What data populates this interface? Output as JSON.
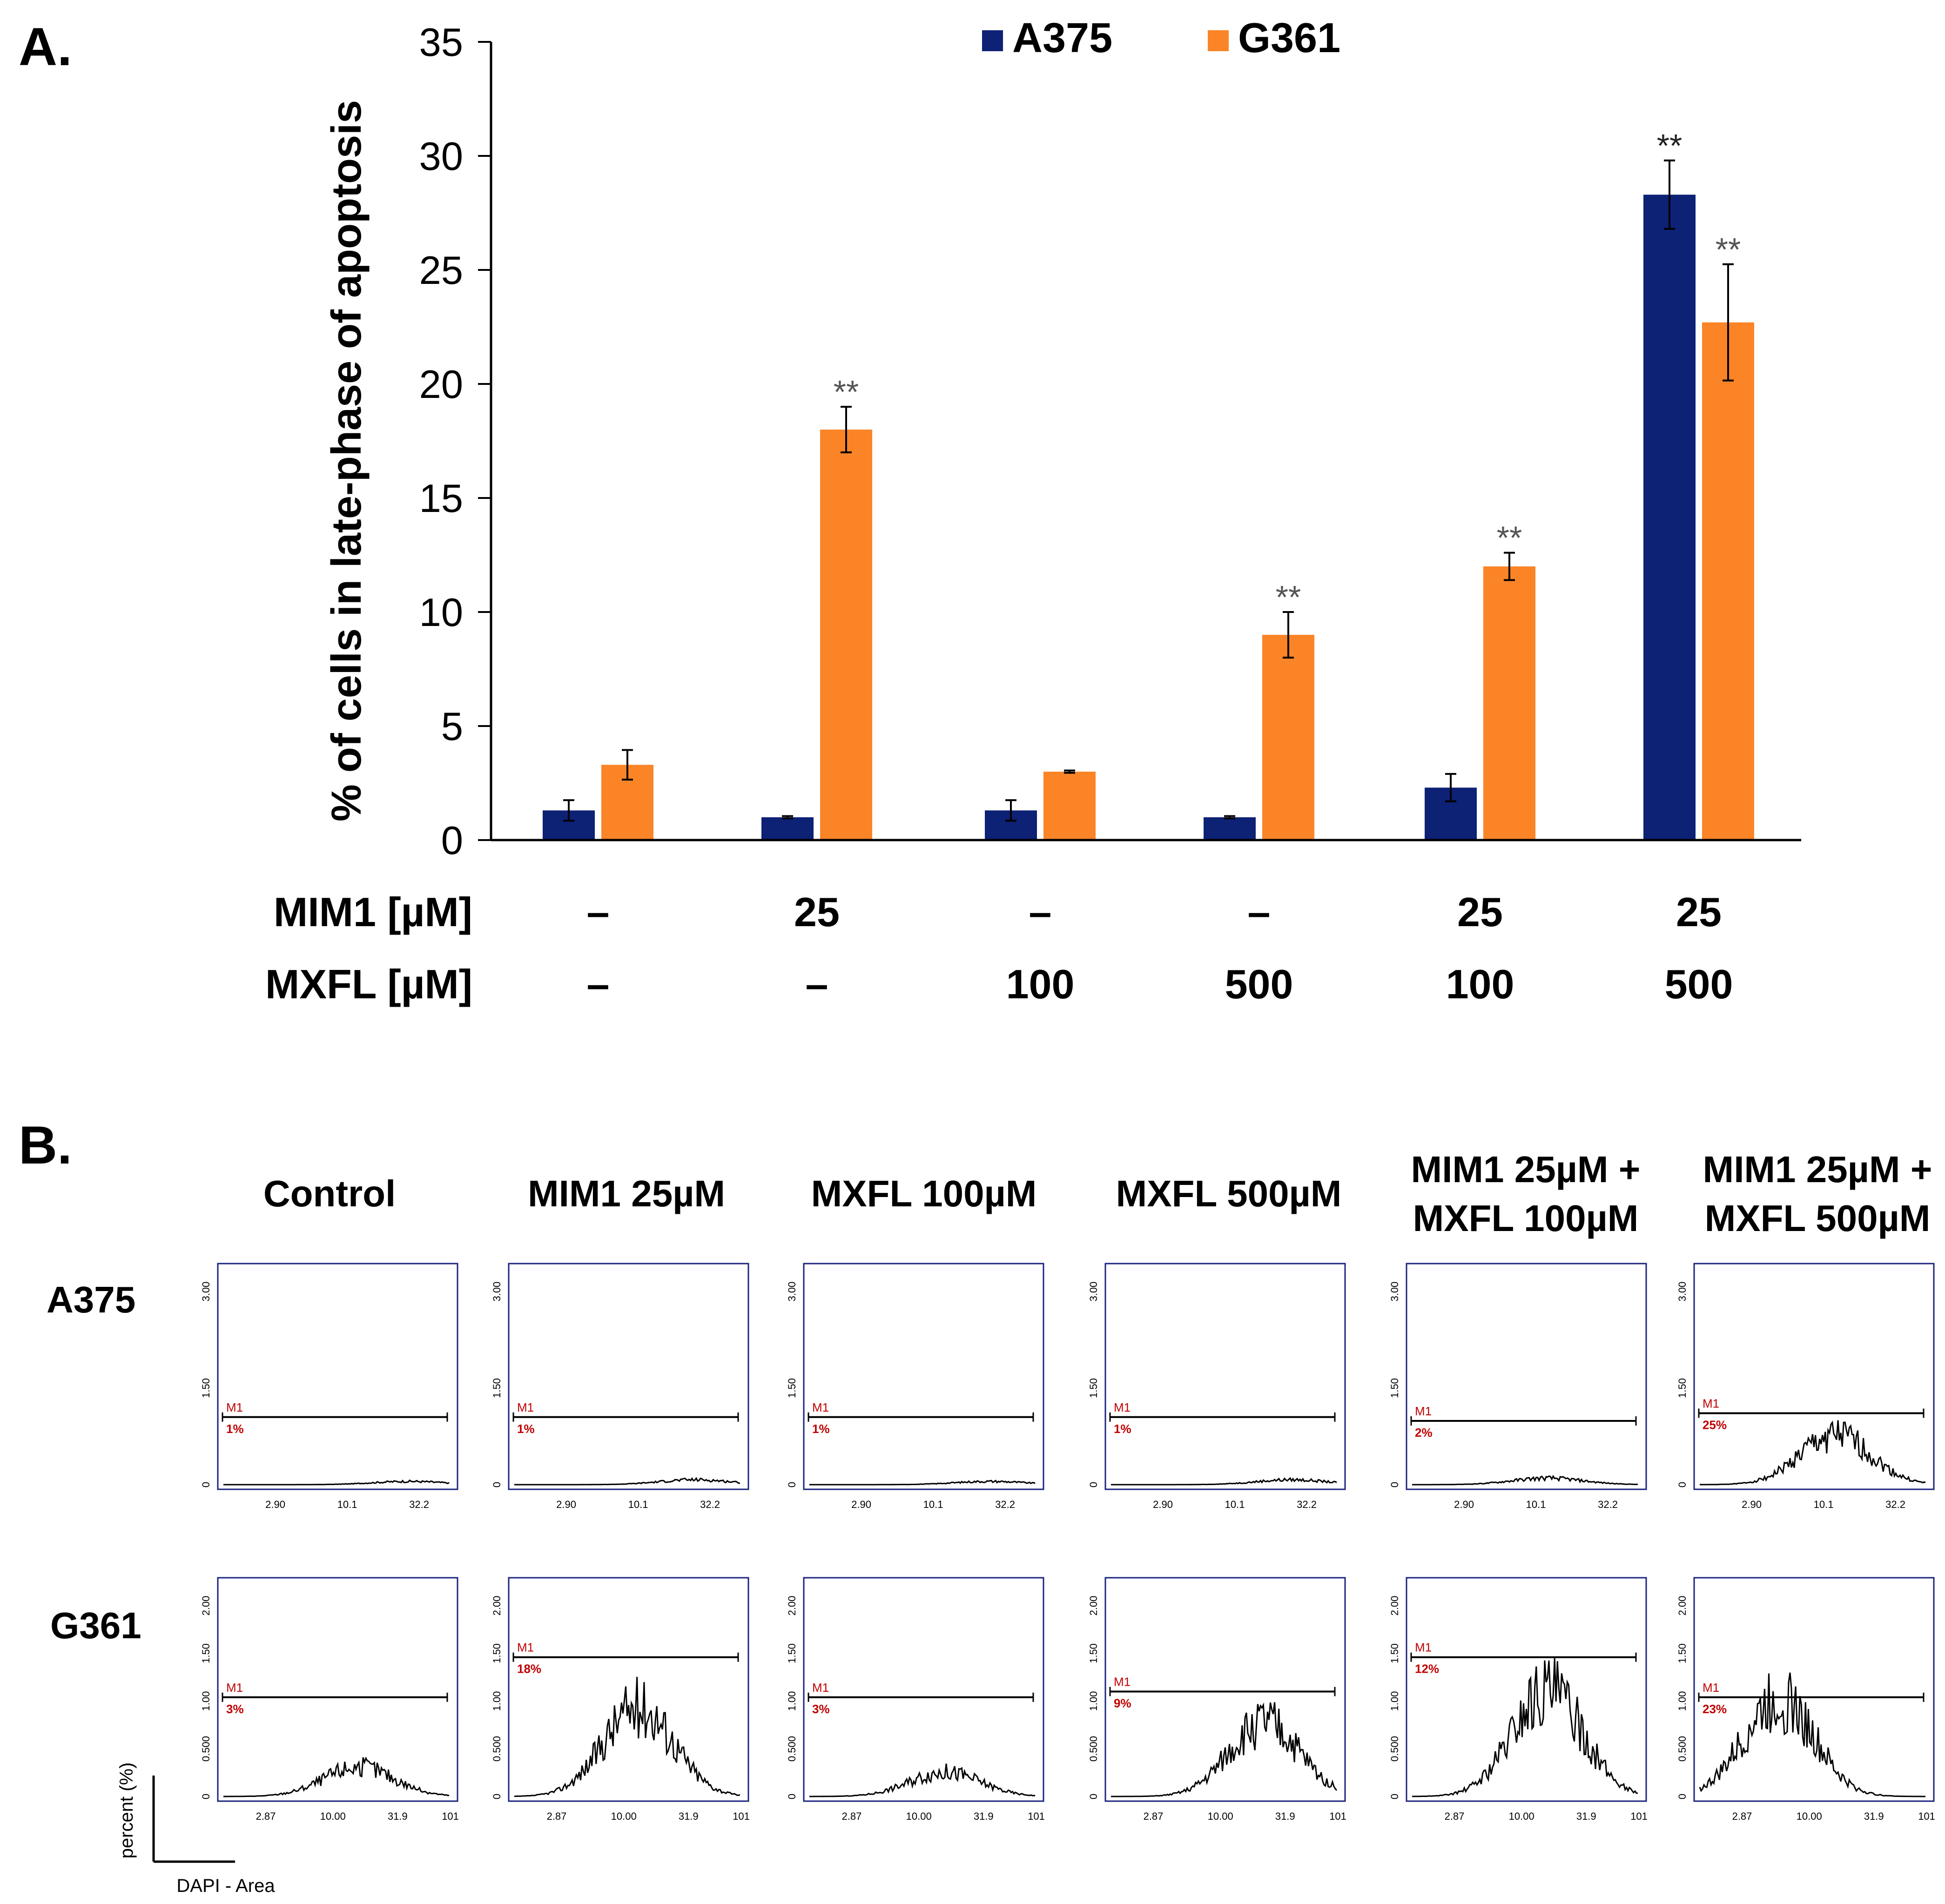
{
  "panel_a": {
    "label": "A.",
    "legend": [
      {
        "name": "A375",
        "color": "#0d2175"
      },
      {
        "name": "G361",
        "color": "#fb8427"
      }
    ],
    "treatment_rows": [
      {
        "label": "MIM1 [µM]",
        "values": [
          "–",
          "25",
          "–",
          "–",
          "25",
          "25"
        ]
      },
      {
        "label": "MXFL [µM]",
        "values": [
          "–",
          "–",
          "100",
          "500",
          "100",
          "500"
        ]
      }
    ]
  },
  "chart_data": {
    "type": "bar",
    "title": "",
    "xlabel": "",
    "ylabel": "% of cells in late-phase of apoptosis",
    "ylim": [
      0,
      35
    ],
    "yticks": [
      "0",
      "5",
      "10",
      "15",
      "20",
      "25",
      "30",
      "35"
    ],
    "categories": [
      "Control",
      "MIM1 25µM",
      "MXFL 100µM",
      "MXFL 500µM",
      "MIM1 25µM + MXFL 100µM",
      "MIM1 25µM + MXFL 500µM"
    ],
    "series": [
      {
        "name": "A375",
        "color": "#0d2175",
        "values": [
          1.3,
          1.0,
          1.3,
          1.0,
          2.3,
          28.3
        ],
        "errors": [
          0.45,
          0.05,
          0.45,
          0.05,
          0.6,
          1.5
        ],
        "significance": [
          "",
          "",
          "",
          "",
          "",
          "**"
        ]
      },
      {
        "name": "G361",
        "color": "#fb8427",
        "values": [
          3.3,
          18.0,
          3.0,
          9.0,
          12.0,
          22.7
        ],
        "errors": [
          0.65,
          1.0,
          0.05,
          1.0,
          0.6,
          2.55
        ],
        "significance": [
          "",
          "**",
          "",
          "**",
          "**",
          "**"
        ]
      }
    ]
  },
  "panel_b": {
    "label": "B.",
    "columns": [
      "Control",
      "MIM1 25µM",
      "MXFL 100µM",
      "MXFL 500µM",
      "MIM1 25µM +\nMXFL 100µM",
      "MIM1 25µM +\nMXFL 500µM"
    ],
    "rows": [
      {
        "label": "A375",
        "y_ticks": [
          "0",
          "1.50",
          "3.00"
        ],
        "x_ticks": [
          "2.90",
          "10.1",
          "32.2"
        ],
        "marker": "M1",
        "percentages": [
          "1%",
          "1%",
          "1%",
          "1%",
          "2%",
          "25%"
        ]
      },
      {
        "label": "G361",
        "y_ticks": [
          "0",
          "0.500",
          "1.00",
          "1.50",
          "2.00"
        ],
        "x_ticks": [
          "2.87",
          "10.00",
          "31.9",
          "101"
        ],
        "marker": "M1",
        "percentages": [
          "3%",
          "18%",
          "3%",
          "9%",
          "12%",
          "23%"
        ]
      }
    ],
    "y_axis_label": "percent (%)",
    "x_axis_label": "DAPI - Area"
  }
}
